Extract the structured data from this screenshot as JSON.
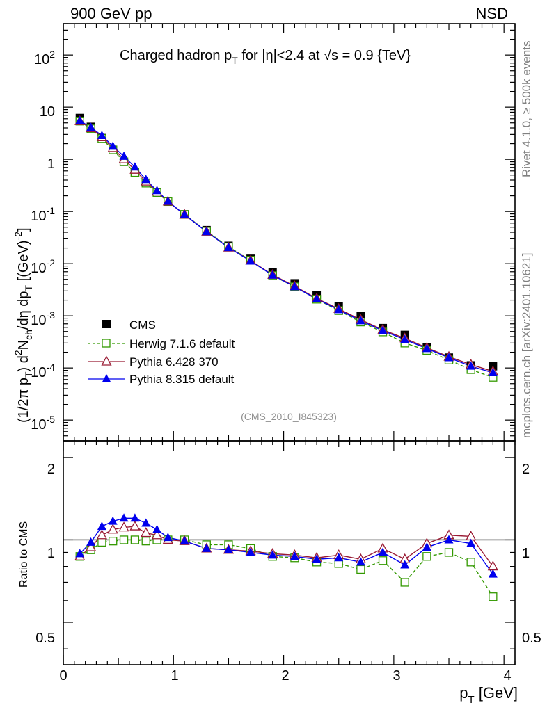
{
  "header": {
    "left": "900 GeV pp",
    "right": "NSD"
  },
  "side_labels": {
    "rivet": "Rivet 4.1.0, ≥ 500k events",
    "mcplots": "mcplots.cern.ch [arXiv:2401.10621]"
  },
  "title": {
    "main": "Charged hadron p",
    "main_sub": "T",
    "rest": " for |η|<2.4 at ",
    "sqrt": "√s",
    "tail": " = 0.9 {TeV}"
  },
  "analysis_id": "(CMS_2010_I845323)",
  "y_axis_main": {
    "p1": "(1/2π p",
    "p1_sub": "T",
    "p2": ") d",
    "p2_sup": "2",
    "p3": "N",
    "p3_sub": "ch",
    "p4": "/dη  dp",
    "p4_sub": "T",
    "p5": " [(GeV)",
    "p5_sup": "-2",
    "p6": "]"
  },
  "y_axis_ratio": "Ratio to CMS",
  "x_axis": {
    "label": "p",
    "label_sub": "T",
    "label_rest": " [GeV]"
  },
  "tick_labels": {
    "x": [
      "0",
      "1",
      "2",
      "3",
      "4"
    ],
    "main_y": [
      {
        "b": "10",
        "e": "-5"
      },
      {
        "b": "10",
        "e": "-4"
      },
      {
        "b": "10",
        "e": "-3"
      },
      {
        "b": "10",
        "e": "-2"
      },
      {
        "b": "10",
        "e": "-1"
      },
      {
        "b": "1",
        "e": ""
      },
      {
        "b": "10",
        "e": ""
      },
      {
        "b": "10",
        "e": "2"
      }
    ],
    "ratio_y": [
      "0.5",
      "1",
      "2"
    ]
  },
  "colors": {
    "cms": "#000000",
    "herwig": "#339900",
    "pythia6": "#991a33",
    "pythia8": "#0000ee"
  },
  "legend": [
    {
      "key": "cms",
      "label": "CMS"
    },
    {
      "key": "herwig",
      "label": "Herwig 7.1.6 default"
    },
    {
      "key": "pythia6",
      "label": "Pythia 6.428 370"
    },
    {
      "key": "pythia8",
      "label": "Pythia 8.315 default"
    }
  ],
  "chart_data": [
    {
      "type": "scatter",
      "title": "Charged hadron pT for |η|<2.4 at √s = 0.9 {TeV}",
      "xlabel": "pT [GeV]",
      "ylabel": "(1/2π pT) d2Nch/dη dpT [(GeV)-2]",
      "xlim": [
        0,
        4.1
      ],
      "ylim": [
        4e-06,
        400
      ],
      "yscale": "log",
      "x": [
        0.15,
        0.25,
        0.35,
        0.45,
        0.55,
        0.65,
        0.75,
        0.85,
        0.95,
        1.1,
        1.3,
        1.5,
        1.7,
        1.9,
        2.1,
        2.3,
        2.5,
        2.7,
        2.9,
        3.1,
        3.3,
        3.5,
        3.7,
        3.9
      ],
      "series": [
        {
          "name": "CMS",
          "key": "cms",
          "values": [
            6.2,
            4.2,
            2.55,
            1.52,
            0.9,
            0.56,
            0.355,
            0.23,
            0.155,
            0.088,
            0.044,
            0.022,
            0.0124,
            0.0068,
            0.0042,
            0.0025,
            0.00153,
            0.00098,
            0.00058,
            0.00043,
            0.00025,
            0.000158,
            0.000112,
            0.000108
          ]
        },
        {
          "name": "Herwig 7.1.6 default",
          "key": "herwig",
          "values": [
            5.4,
            3.85,
            2.5,
            1.52,
            0.9,
            0.56,
            0.35,
            0.23,
            0.155,
            0.088,
            0.042,
            0.021,
            0.0116,
            0.0059,
            0.0036,
            0.00208,
            0.00126,
            0.00076,
            0.00049,
            0.0003,
            0.000217,
            0.000142,
            9.3e-05,
            6.6e-05
          ]
        },
        {
          "name": "Pythia 6.428 370",
          "key": "pythia6",
          "values": [
            5.4,
            3.95,
            2.65,
            1.65,
            1.0,
            0.63,
            0.375,
            0.24,
            0.155,
            0.087,
            0.041,
            0.0203,
            0.0114,
            0.0061,
            0.0037,
            0.00215,
            0.00136,
            0.00084,
            0.00054,
            0.00037,
            0.000244,
            0.000164,
            0.000116,
            8.6e-05
          ]
        },
        {
          "name": "Pythia 8.315 default",
          "key": "pythia8",
          "values": [
            5.5,
            4.1,
            2.85,
            1.78,
            1.14,
            0.71,
            0.41,
            0.25,
            0.157,
            0.087,
            0.041,
            0.0203,
            0.0112,
            0.006,
            0.0036,
            0.0021,
            0.00131,
            0.0008,
            0.00052,
            0.00035,
            0.000235,
            0.000157,
            0.000108,
            8.1e-05
          ]
        }
      ]
    },
    {
      "type": "line",
      "title": "Ratio to CMS",
      "xlabel": "pT [GeV]",
      "ylabel": "Ratio to CMS",
      "xlim": [
        0,
        4.1
      ],
      "ylim": [
        0.35,
        2.3
      ],
      "yscale": "log",
      "reference_line": 1,
      "x": [
        0.15,
        0.25,
        0.35,
        0.45,
        0.55,
        0.65,
        0.75,
        0.85,
        0.95,
        1.1,
        1.3,
        1.5,
        1.7,
        1.9,
        2.1,
        2.3,
        2.5,
        2.7,
        2.9,
        3.1,
        3.3,
        3.5,
        3.7,
        3.9
      ],
      "series": [
        {
          "name": "Herwig 7.1.6 default",
          "key": "herwig",
          "values": [
            0.87,
            0.92,
            0.98,
            0.99,
            1.0,
            1.0,
            0.99,
            1.0,
            1.0,
            1.0,
            0.96,
            0.96,
            0.93,
            0.87,
            0.86,
            0.83,
            0.82,
            0.78,
            0.84,
            0.7,
            0.87,
            0.9,
            0.83,
            0.62
          ]
        },
        {
          "name": "Pythia 6.428 370",
          "key": "pythia6",
          "values": [
            0.87,
            0.94,
            1.04,
            1.09,
            1.11,
            1.12,
            1.06,
            1.04,
            1.0,
            0.99,
            0.93,
            0.92,
            0.91,
            0.89,
            0.88,
            0.86,
            0.88,
            0.85,
            0.93,
            0.85,
            0.97,
            1.04,
            1.03,
            0.8
          ]
        },
        {
          "name": "Pythia 8.315 default",
          "key": "pythia8",
          "values": [
            0.89,
            0.98,
            1.12,
            1.17,
            1.2,
            1.2,
            1.15,
            1.09,
            1.02,
            0.99,
            0.93,
            0.92,
            0.9,
            0.88,
            0.87,
            0.85,
            0.86,
            0.83,
            0.9,
            0.81,
            0.94,
            1.0,
            0.97,
            0.75
          ]
        }
      ]
    }
  ]
}
